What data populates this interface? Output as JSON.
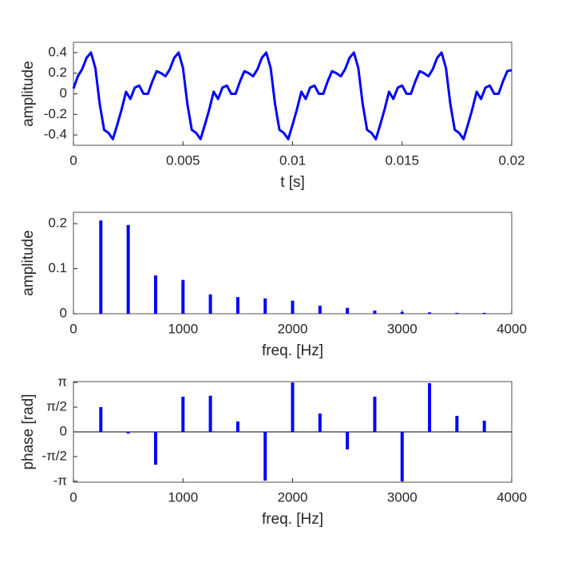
{
  "chart_data": [
    {
      "type": "line",
      "xlabel": "t [s]",
      "ylabel": "amplitude",
      "xlim": [
        0,
        0.02
      ],
      "ylim": [
        -0.5,
        0.5
      ],
      "xticks": [
        0,
        0.005,
        0.01,
        0.015,
        0.02
      ],
      "yticks": [
        -0.4,
        -0.2,
        0,
        0.2,
        0.4
      ],
      "color": "#0000ff",
      "x": [
        0,
        0.0002,
        0.0004,
        0.0006,
        0.0008,
        0.001,
        0.0012,
        0.0014,
        0.0016,
        0.0018,
        0.002,
        0.0022,
        0.0024,
        0.0026,
        0.0028,
        0.003,
        0.0032,
        0.0034,
        0.0036,
        0.0038,
        0.004,
        0.0042,
        0.0044,
        0.0046,
        0.0048,
        0.005,
        0.0052,
        0.0054,
        0.0056,
        0.0058,
        0.006,
        0.0062,
        0.0064,
        0.0066,
        0.0068,
        0.007,
        0.0072,
        0.0074,
        0.0076,
        0.0078,
        0.008,
        0.0082,
        0.0084,
        0.0086,
        0.0088,
        0.009,
        0.0092,
        0.0094,
        0.0096,
        0.0098,
        0.01,
        0.0102,
        0.0104,
        0.0106,
        0.0108,
        0.011,
        0.0112,
        0.0114,
        0.0116,
        0.0118,
        0.012,
        0.0122,
        0.0124,
        0.0126,
        0.0128,
        0.013,
        0.0132,
        0.0134,
        0.0136,
        0.0138,
        0.014,
        0.0142,
        0.0144,
        0.0146,
        0.0148,
        0.015,
        0.0152,
        0.0154,
        0.0156,
        0.0158,
        0.016,
        0.0162,
        0.0164,
        0.0166,
        0.0168,
        0.017,
        0.0172,
        0.0174,
        0.0176,
        0.0178,
        0.018,
        0.0182,
        0.0184,
        0.0186,
        0.0188,
        0.019,
        0.0192,
        0.0194,
        0.0196,
        0.0198,
        0.02
      ],
      "values": [
        0.05,
        0.17,
        0.24,
        0.35,
        0.4,
        0.25,
        -0.1,
        -0.35,
        -0.38,
        -0.44,
        -0.3,
        -0.15,
        0.02,
        -0.05,
        0.06,
        0.08,
        0,
        0,
        0.12,
        0.22,
        0.2,
        0.17,
        0.24,
        0.35,
        0.4,
        0.25,
        -0.1,
        -0.35,
        -0.38,
        -0.44,
        -0.3,
        -0.15,
        0.02,
        -0.05,
        0.06,
        0.08,
        0,
        0,
        0.12,
        0.22,
        0.2,
        0.17,
        0.24,
        0.35,
        0.4,
        0.25,
        -0.1,
        -0.35,
        -0.38,
        -0.44,
        -0.3,
        -0.15,
        0.02,
        -0.05,
        0.06,
        0.08,
        0,
        0,
        0.12,
        0.22,
        0.2,
        0.17,
        0.24,
        0.35,
        0.4,
        0.25,
        -0.1,
        -0.35,
        -0.38,
        -0.44,
        -0.3,
        -0.15,
        0.02,
        -0.05,
        0.06,
        0.08,
        0,
        0,
        0.12,
        0.22,
        0.2,
        0.17,
        0.24,
        0.35,
        0.4,
        0.25,
        -0.1,
        -0.35,
        -0.38,
        -0.44,
        -0.3,
        -0.15,
        0.02,
        -0.05,
        0.06,
        0.08,
        0,
        0,
        0.12,
        0.22,
        0.23
      ]
    },
    {
      "type": "bar",
      "xlabel": "freq. [Hz]",
      "ylabel": "amplitude",
      "xlim": [
        0,
        4000
      ],
      "ylim": [
        0,
        0.225
      ],
      "xticks": [
        0,
        1000,
        2000,
        3000,
        4000
      ],
      "yticks": [
        0,
        0.1,
        0.2
      ],
      "color": "#0000ff",
      "x": [
        250,
        500,
        750,
        1000,
        1250,
        1500,
        1750,
        2000,
        2250,
        2500,
        2750,
        3000,
        3250,
        3500,
        3750
      ],
      "values": [
        0.207,
        0.197,
        0.085,
        0.075,
        0.043,
        0.037,
        0.034,
        0.029,
        0.018,
        0.013,
        0.007,
        0.004,
        0.003,
        0.002,
        0.002
      ]
    },
    {
      "type": "bar",
      "xlabel": "freq. [Hz]",
      "ylabel": "phase [rad]",
      "xlim": [
        0,
        4000
      ],
      "ylim": [
        -3.2,
        3.2
      ],
      "xticks": [
        0,
        1000,
        2000,
        3000,
        4000
      ],
      "yticks": [
        {
          "value": -3.1416,
          "label": "-π"
        },
        {
          "value": -1.5708,
          "label": "-π/2"
        },
        0,
        {
          "value": 1.5708,
          "label": "π/2"
        },
        {
          "value": 3.1416,
          "label": "π"
        }
      ],
      "color": "#0000ff",
      "x": [
        250,
        500,
        750,
        1000,
        1250,
        1500,
        1750,
        2000,
        2250,
        2500,
        2750,
        3000,
        3250,
        3500,
        3750
      ],
      "values": [
        1.58,
        -0.1,
        -2.09,
        2.24,
        2.3,
        0.66,
        -3.1,
        3.14,
        1.17,
        -1.12,
        2.24,
        -3.14,
        3.1,
        1.02,
        0.71
      ]
    }
  ]
}
